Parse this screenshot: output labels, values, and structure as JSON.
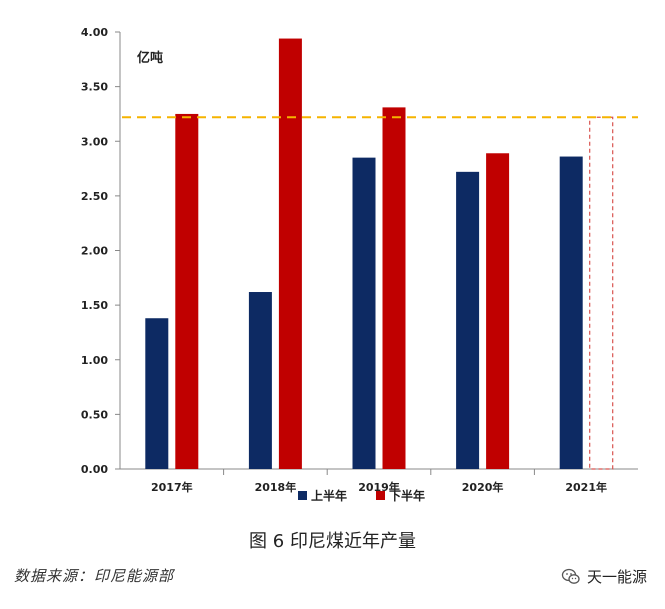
{
  "chart_data": {
    "type": "bar",
    "title": "",
    "ylabel": "亿吨",
    "xlabel": "",
    "categories": [
      "2017年",
      "2018年",
      "2019年",
      "2020年",
      "2021年"
    ],
    "series": [
      {
        "name": "上半年",
        "color": "#0d2a63",
        "values": [
          1.38,
          1.62,
          2.85,
          2.72,
          2.86
        ]
      },
      {
        "name": "下半年",
        "color": "#c00000",
        "values": [
          3.25,
          3.94,
          3.31,
          2.89,
          null
        ]
      }
    ],
    "projection": {
      "series": "下半年",
      "category": "2021年",
      "value": 3.22,
      "style": "dashed outline"
    },
    "reference_line": {
      "value": 3.22,
      "color": "#f5b400",
      "style": "dashed"
    },
    "ylim": [
      0,
      4
    ],
    "yticks": [
      "0.00",
      "0.50",
      "1.00",
      "1.50",
      "2.00",
      "2.50",
      "3.00",
      "3.50",
      "4.00"
    ],
    "ytick_values": [
      0,
      0.5,
      1,
      1.5,
      2,
      2.5,
      3,
      3.5,
      4
    ],
    "legend_position": "bottom-center",
    "grid": false
  },
  "caption": "图 6  印尼煤近年产量",
  "source": "数据来源：印尼能源部",
  "watermark": {
    "text": "天一能源",
    "icon": "wechat-icon"
  }
}
